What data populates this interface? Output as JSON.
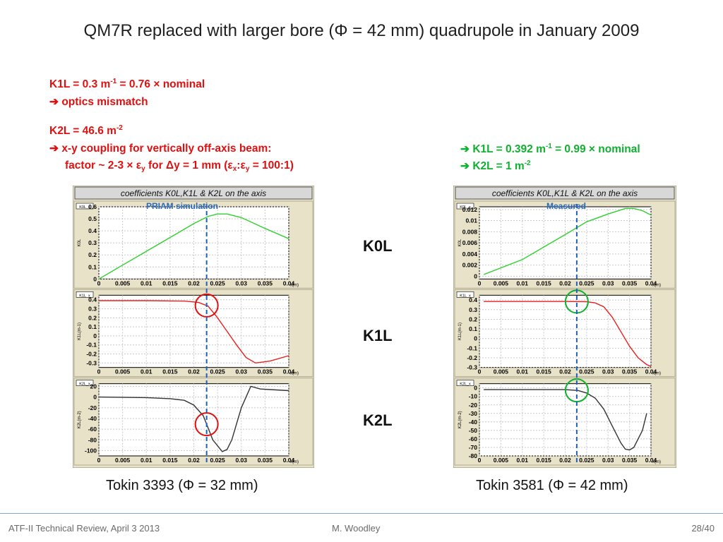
{
  "title": "QM7R replaced with larger bore (Φ = 42 mm) quadrupole in January 2009",
  "left_notes": {
    "k1l_a": "K1L = 0.3 m",
    "k1l_sup": "-1",
    "k1l_b": " = 0.76 × nominal",
    "mismatch": "optics mismatch",
    "k2l_a": "K2L = 46.6 m",
    "k2l_sup": "-2",
    "coupling": "x-y coupling for vertically off-axis beam:",
    "factor_a": "factor ~ 2-3 × ε",
    "factor_sub": "y",
    "factor_b": " for Δy = 1 mm (ε",
    "factor_sub2": "x",
    "factor_c": ":ε",
    "factor_sub3": "y",
    "factor_d": " = 100:1)"
  },
  "right_notes": {
    "k1l_a": "K1L = 0.392 m",
    "k1l_sup": "-1",
    "k1l_b": " = 0.99 × nominal",
    "k2l_a": "K2L = 1 m",
    "k2l_sup": "-2"
  },
  "row_labels": {
    "k0l": "K0L",
    "k1l": "K1L",
    "k2l": "K2L"
  },
  "captions": {
    "left": "Tokin 3393 (Φ = 32 mm)",
    "right": "Tokin 3581 (Φ = 42 mm)"
  },
  "footer": {
    "left": "ATF-II Technical Review, April 3 2013",
    "center": "M. Woodley",
    "right": "28/40"
  },
  "colors": {
    "red": "#e01010",
    "green": "#10b030",
    "dashed": "#2060c0",
    "panel": "#e8e2c8"
  },
  "chart_data": [
    {
      "type": "line",
      "title": "coefficients K0L,K1L & K2L on the axis",
      "annotation": "PRIAM simulation",
      "xlabel": "x(m)",
      "x_ticks": [
        "0",
        "0.005",
        "0.01",
        "0.015",
        "0.02",
        "0.025",
        "0.03",
        "0.035",
        "0.04"
      ],
      "dashed_x": 0.0227,
      "panels": [
        {
          "name": "K0L",
          "tag": "K0L_x",
          "ylabel": "K0L",
          "color": "#2ed02e",
          "ylim": [
            0,
            0.6
          ],
          "y_ticks": [
            "0",
            "0.1",
            "0.2",
            "0.3",
            "0.4",
            "0.5",
            "0.6"
          ],
          "x": [
            0,
            0.005,
            0.01,
            0.015,
            0.02,
            0.023,
            0.025,
            0.027,
            0.03,
            0.035,
            0.04
          ],
          "y": [
            0,
            0.115,
            0.23,
            0.345,
            0.46,
            0.52,
            0.54,
            0.54,
            0.51,
            0.42,
            0.335
          ]
        },
        {
          "name": "K1L",
          "tag": "K1L_x",
          "ylabel": "K1L(m-1)",
          "color": "#e82020",
          "ylim": [
            -0.35,
            0.45
          ],
          "y_ticks": [
            "0.4",
            "0.3",
            "0.2",
            "0.1",
            "0",
            "-0.1",
            "-0.2",
            "-0.3"
          ],
          "x": [
            0,
            0.01,
            0.018,
            0.021,
            0.023,
            0.025,
            0.027,
            0.029,
            0.031,
            0.033,
            0.036,
            0.04
          ],
          "y": [
            0.39,
            0.39,
            0.385,
            0.37,
            0.33,
            0.2,
            0.05,
            -0.1,
            -0.24,
            -0.3,
            -0.28,
            -0.22
          ]
        },
        {
          "name": "K2L",
          "tag": "K2L_x",
          "ylabel": "K2L(m-2)",
          "color": "#333333",
          "ylim": [
            -110,
            25
          ],
          "y_ticks": [
            "20",
            "0",
            "-20",
            "-40",
            "-60",
            "-80",
            "-100"
          ],
          "x": [
            0,
            0.01,
            0.015,
            0.018,
            0.02,
            0.022,
            0.024,
            0.026,
            0.027,
            0.028,
            0.03,
            0.032,
            0.034,
            0.036,
            0.04
          ],
          "y": [
            0,
            -1,
            -3,
            -6,
            -15,
            -35,
            -80,
            -102,
            -98,
            -80,
            -20,
            20,
            15,
            14,
            12
          ]
        },
        {
          "note": "circles drawn at dashed line on K1L and K2L"
        }
      ],
      "circle_color": "#e01010"
    },
    {
      "type": "line",
      "title": "coefficients K0L,K1L & K2L on the axis",
      "annotation": "Measured",
      "xlabel": "x(m)",
      "x_ticks": [
        "0",
        "0.005",
        "0.01",
        "0.015",
        "0.02",
        "0.025",
        "0.03",
        "0.035",
        "0.04"
      ],
      "dashed_x": 0.0227,
      "panels": [
        {
          "name": "K0L",
          "tag": "K0L_x",
          "ylabel": "K0L",
          "color": "#2ed02e",
          "ylim": [
            -0.0005,
            0.0125
          ],
          "y_ticks": [
            "0.012",
            "0.01",
            "0.008",
            "0.006",
            "0.004",
            "0.002",
            "0"
          ],
          "x": [
            0.001,
            0.01,
            0.02,
            0.025,
            0.03,
            0.034,
            0.036,
            0.038,
            0.04
          ],
          "y": [
            0.0003,
            0.003,
            0.0075,
            0.0098,
            0.0112,
            0.0122,
            0.0122,
            0.0118,
            0.011
          ]
        },
        {
          "name": "K1L",
          "tag": "K1L_x",
          "ylabel": "K1L(m-1)",
          "color": "#e82020",
          "ylim": [
            -0.3,
            0.45
          ],
          "y_ticks": [
            "0.4",
            "0.3",
            "0.2",
            "0.1",
            "0",
            "-0.1",
            "-0.2",
            "-0.3"
          ],
          "x": [
            0.001,
            0.01,
            0.02,
            0.025,
            0.027,
            0.029,
            0.031,
            0.033,
            0.035,
            0.037,
            0.039,
            0.04
          ],
          "y": [
            0.385,
            0.385,
            0.385,
            0.383,
            0.37,
            0.33,
            0.22,
            0.07,
            -0.08,
            -0.2,
            -0.27,
            -0.29
          ]
        },
        {
          "name": "K2L",
          "tag": "K2L_x",
          "ylabel": "K2L(m-2)",
          "color": "#333333",
          "ylim": [
            -80,
            5
          ],
          "y_ticks": [
            "0",
            "-10",
            "-20",
            "-30",
            "-40",
            "-50",
            "-60",
            "-70",
            "-80"
          ],
          "x": [
            0.001,
            0.01,
            0.02,
            0.023,
            0.025,
            0.027,
            0.029,
            0.031,
            0.033,
            0.034,
            0.035,
            0.036,
            0.038,
            0.039
          ],
          "y": [
            -2,
            -2,
            -2,
            -3,
            -6,
            -12,
            -25,
            -45,
            -65,
            -72,
            -73,
            -70,
            -50,
            -30
          ]
        }
      ],
      "circle_color": "#10b030"
    }
  ]
}
